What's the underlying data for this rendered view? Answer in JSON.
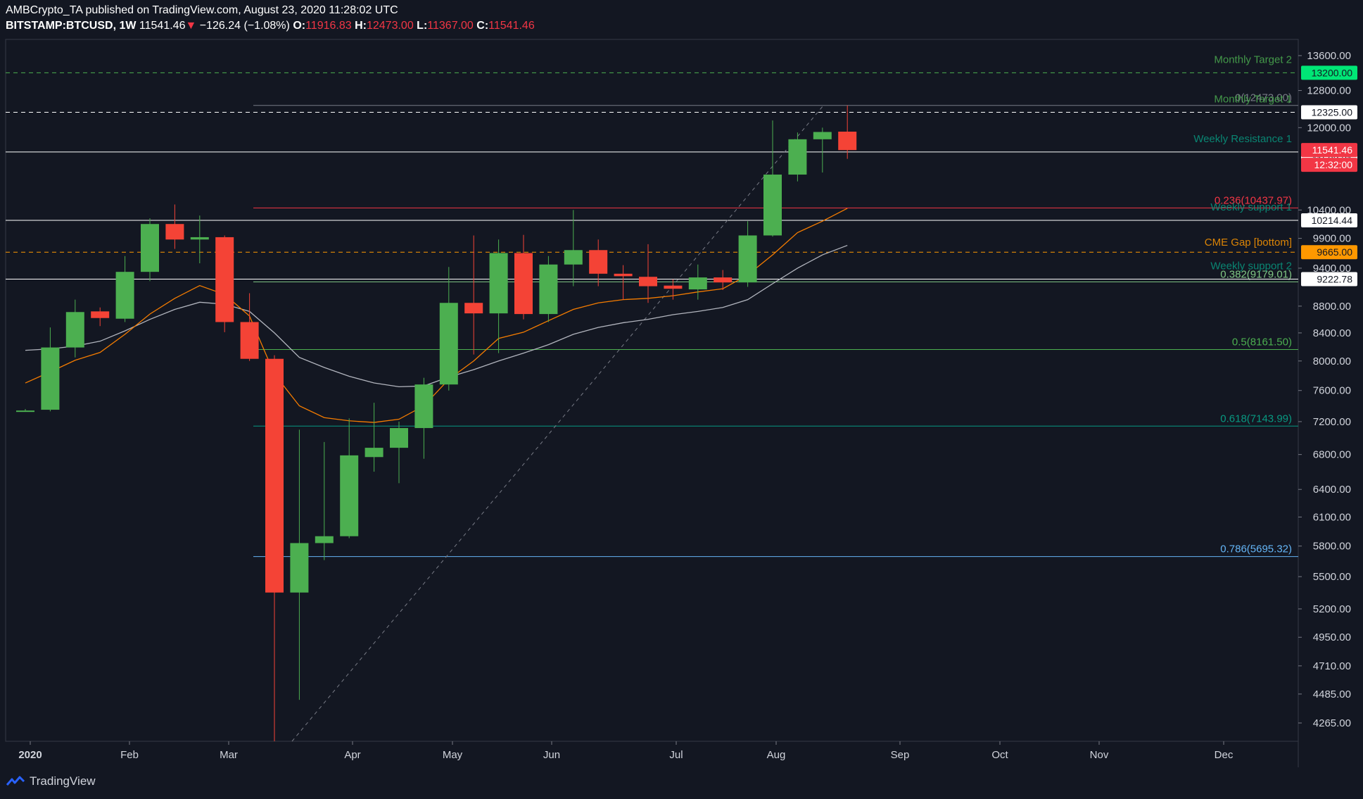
{
  "header": {
    "line1": "AMBCrypto_TA published on TradingView.com, August 23, 2020 11:28:02 UTC",
    "symbol": "BITSTAMP:BTCUSD, 1W",
    "last": "11541.46",
    "arrow": "▼",
    "change": "−126.24 (−1.08%)",
    "o_label": "O:",
    "o": "11916.83",
    "h_label": "H:",
    "h": "12473.00",
    "l_label": "L:",
    "l": "11367.00",
    "c_label": "C:",
    "c": "11541.46"
  },
  "brand": {
    "name": "TradingView",
    "icon": "tradingview-logo-icon"
  },
  "colors": {
    "background": "#131722",
    "up": "#4caf50",
    "down": "#f44336",
    "ema_orange": "#f57c00",
    "ema_gray": "#b2b5be"
  },
  "chart_data": {
    "type": "candlestick",
    "timeframe": "1W",
    "y_scale": "log",
    "ylim": [
      4100,
      14000
    ],
    "x_ticks": [
      "2020",
      "Feb",
      "Mar",
      "Apr",
      "May",
      "Jun",
      "Jul",
      "Aug",
      "Sep",
      "Oct",
      "Nov",
      "Dec"
    ],
    "y_ticks": [
      "13600.00",
      "12800.00",
      "12000.00",
      "10400.00",
      "9900.00",
      "9400.00",
      "8800.00",
      "8400.00",
      "8000.00",
      "7600.00",
      "7200.00",
      "6800.00",
      "6400.00",
      "6100.00",
      "5800.00",
      "5500.00",
      "5200.00",
      "4950.00",
      "4710.00",
      "4485.00",
      "4265.00"
    ],
    "candles": [
      {
        "o": 7330,
        "h": 7360,
        "l": 7330,
        "c": 7340
      },
      {
        "o": 7350,
        "h": 8480,
        "l": 7330,
        "c": 8190
      },
      {
        "o": 8190,
        "h": 8900,
        "l": 8050,
        "c": 8710
      },
      {
        "o": 8720,
        "h": 8780,
        "l": 8500,
        "c": 8620
      },
      {
        "o": 8610,
        "h": 9600,
        "l": 8560,
        "c": 9340
      },
      {
        "o": 9340,
        "h": 10250,
        "l": 9190,
        "c": 10150
      },
      {
        "o": 10150,
        "h": 10500,
        "l": 9720,
        "c": 9880
      },
      {
        "o": 9880,
        "h": 10300,
        "l": 9480,
        "c": 9920
      },
      {
        "o": 9920,
        "h": 9950,
        "l": 8410,
        "c": 8560
      },
      {
        "o": 8560,
        "h": 9000,
        "l": 8000,
        "c": 8030
      },
      {
        "o": 8030,
        "h": 8080,
        "l": 3850,
        "c": 5350
      },
      {
        "o": 5350,
        "h": 7100,
        "l": 4440,
        "c": 5830
      },
      {
        "o": 5830,
        "h": 6950,
        "l": 5660,
        "c": 5900
      },
      {
        "o": 5900,
        "h": 7240,
        "l": 5880,
        "c": 6790
      },
      {
        "o": 6770,
        "h": 7440,
        "l": 6600,
        "c": 6880
      },
      {
        "o": 6880,
        "h": 7200,
        "l": 6470,
        "c": 7120
      },
      {
        "o": 7120,
        "h": 7770,
        "l": 6750,
        "c": 7680
      },
      {
        "o": 7680,
        "h": 9420,
        "l": 7600,
        "c": 8850
      },
      {
        "o": 8850,
        "h": 9950,
        "l": 8090,
        "c": 8690
      },
      {
        "o": 8690,
        "h": 9880,
        "l": 8110,
        "c": 9650
      },
      {
        "o": 9650,
        "h": 9960,
        "l": 8600,
        "c": 8680
      },
      {
        "o": 8680,
        "h": 9600,
        "l": 8560,
        "c": 9460
      },
      {
        "o": 9460,
        "h": 10400,
        "l": 9110,
        "c": 9700
      },
      {
        "o": 9700,
        "h": 9880,
        "l": 9110,
        "c": 9310
      },
      {
        "o": 9310,
        "h": 9450,
        "l": 8900,
        "c": 9270
      },
      {
        "o": 9260,
        "h": 9800,
        "l": 8850,
        "c": 9110
      },
      {
        "o": 9120,
        "h": 9220,
        "l": 8900,
        "c": 9070
      },
      {
        "o": 9060,
        "h": 9460,
        "l": 8900,
        "c": 9250
      },
      {
        "o": 9250,
        "h": 9370,
        "l": 9050,
        "c": 9170
      },
      {
        "o": 9170,
        "h": 10200,
        "l": 9100,
        "c": 9950
      },
      {
        "o": 9950,
        "h": 12150,
        "l": 9930,
        "c": 11060
      },
      {
        "o": 11060,
        "h": 11900,
        "l": 10930,
        "c": 11760
      },
      {
        "o": 11760,
        "h": 12000,
        "l": 11100,
        "c": 11910
      },
      {
        "o": 11916.83,
        "h": 12473.0,
        "l": 11367.0,
        "c": 11541.46
      }
    ],
    "ema_orange": [
      7700,
      7850,
      8010,
      8120,
      8380,
      8680,
      8920,
      9120,
      8980,
      8650,
      7820,
      7400,
      7250,
      7210,
      7190,
      7230,
      7400,
      7750,
      8000,
      8320,
      8410,
      8580,
      8750,
      8850,
      8900,
      8920,
      8960,
      9020,
      9070,
      9290,
      9620,
      10000,
      10200,
      10430
    ],
    "ema_gray": [
      8150,
      8170,
      8210,
      8280,
      8430,
      8600,
      8750,
      8860,
      8830,
      8720,
      8400,
      8050,
      7910,
      7790,
      7700,
      7650,
      7660,
      7780,
      7880,
      8000,
      8110,
      8230,
      8380,
      8480,
      8550,
      8600,
      8670,
      8720,
      8780,
      8900,
      9150,
      9400,
      9620,
      9780
    ],
    "horizontal_levels": [
      {
        "label": "Monthly Target 2",
        "value": 13200.0,
        "tag": "13200.00",
        "color": "#4caf50",
        "style": "dashed",
        "tag_bg": "#00e676",
        "tag_fg": "#131722"
      },
      {
        "label": "Monthly Target 1",
        "value": 12325.0,
        "tag": "12325.00",
        "color": "#ffffff",
        "style": "dashed",
        "tag_bg": "#ffffff",
        "tag_fg": "#131722"
      },
      {
        "label": "Weekly Resistance 1",
        "value": 11503.31,
        "tag": "11503.31",
        "color": "#ffffff",
        "style": "solid",
        "tag_bg": "#ffffff",
        "tag_fg": "#131722"
      },
      {
        "label": "Weekly support 1",
        "value": 10214.44,
        "tag": "10214.44",
        "color": "#ffffff",
        "style": "solid",
        "tag_bg": "#ffffff",
        "tag_fg": "#131722"
      },
      {
        "label": "CME Gap [bottom]",
        "value": 9665.0,
        "tag": "9665.00",
        "color": "#ff9800",
        "style": "dashed",
        "tag_bg": "#ff9800",
        "tag_fg": "#131722"
      },
      {
        "label": "Weekly support 2",
        "value": 9222.78,
        "tag": "9222.78",
        "color": "#ffffff",
        "style": "solid",
        "tag_bg": "#ffffff",
        "tag_fg": "#131722"
      }
    ],
    "fib_levels": [
      {
        "label": "0(12473.00)",
        "value": 12473.0,
        "color": "#787b86"
      },
      {
        "label": "0.236(10437.97)",
        "value": 10437.97,
        "color": "#f23645"
      },
      {
        "label": "0.382(9179.01)",
        "value": 9179.01,
        "color": "#81c784"
      },
      {
        "label": "0.5(8161.50)",
        "value": 8161.5,
        "color": "#4caf50"
      },
      {
        "label": "0.618(7143.99)",
        "value": 7143.99,
        "color": "#089981"
      },
      {
        "label": "0.786(5695.32)",
        "value": 5695.32,
        "color": "#64b5f6"
      }
    ],
    "price_tags": [
      {
        "text": "11541.46",
        "value": 11541.46,
        "bg": "#f23645",
        "fg": "#ffffff"
      },
      {
        "text": "12:32:00",
        "bg": "#f23645",
        "fg": "#ffffff"
      }
    ]
  }
}
